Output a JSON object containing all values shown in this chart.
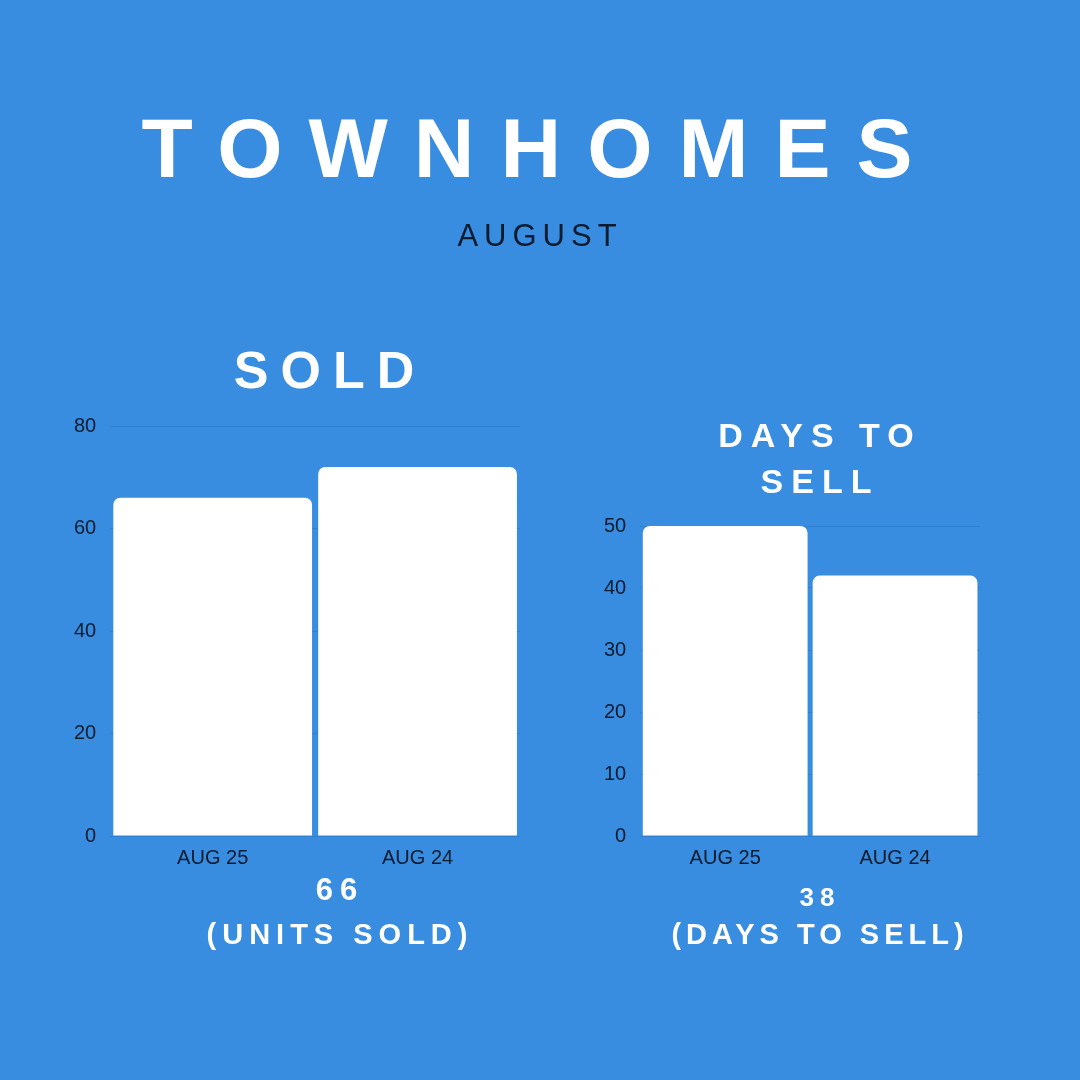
{
  "chart_data": [
    {
      "type": "bar",
      "title": "SOLD",
      "categories": [
        "AUG 25",
        "AUG 24"
      ],
      "values": [
        66,
        72
      ],
      "color": "#ffffff",
      "ylim": [
        0,
        80
      ],
      "yticks": [
        0,
        20,
        40,
        60,
        80
      ],
      "grid": "y",
      "annotations": [
        "TOWNHOMES",
        "AUGUST",
        "66",
        "(UNITS SOLD)"
      ]
    },
    {
      "type": "bar",
      "title": "DAYS TO SELL",
      "categories": [
        "AUG 25",
        "AUG 24"
      ],
      "values": [
        50,
        42
      ],
      "color": "#ffffff",
      "ylim": [
        0,
        50
      ],
      "yticks": [
        0,
        10,
        20,
        30,
        40,
        50
      ],
      "grid": "y",
      "annotations": [
        "38",
        "(DAYS TO SELL)"
      ]
    }
  ]
}
